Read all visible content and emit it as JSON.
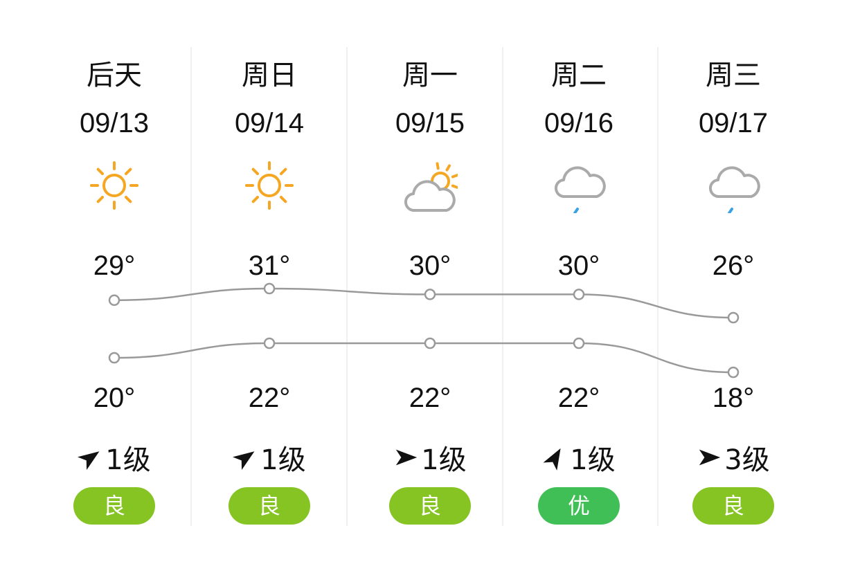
{
  "days": [
    {
      "day": "后天",
      "date": "09/13",
      "weather": "sunny-icon",
      "high": 29,
      "high_label": "29°",
      "low": 20,
      "low_label": "20°",
      "wind_dir": -35,
      "wind": "1级",
      "aqi": "良",
      "aqi_color": "#86c423"
    },
    {
      "day": "周日",
      "date": "09/14",
      "weather": "sunny-icon",
      "high": 31,
      "high_label": "31°",
      "low": 22,
      "low_label": "22°",
      "wind_dir": -35,
      "wind": "1级",
      "aqi": "良",
      "aqi_color": "#86c423"
    },
    {
      "day": "周一",
      "date": "09/15",
      "weather": "partly-cloudy-icon",
      "high": 30,
      "high_label": "30°",
      "low": 22,
      "low_label": "22°",
      "wind_dir": 0,
      "wind": "1级",
      "aqi": "良",
      "aqi_color": "#86c423"
    },
    {
      "day": "周二",
      "date": "09/16",
      "weather": "light-rain-icon",
      "high": 30,
      "high_label": "30°",
      "low": 22,
      "low_label": "22°",
      "wind_dir": -60,
      "wind": "1级",
      "aqi": "优",
      "aqi_color": "#3fbf55"
    },
    {
      "day": "周三",
      "date": "09/17",
      "weather": "light-rain-icon",
      "high": 26,
      "high_label": "26°",
      "low": 18,
      "low_label": "18°",
      "wind_dir": 0,
      "wind": "3级",
      "aqi": "良",
      "aqi_color": "#86c423"
    }
  ],
  "colors": {
    "sun": "#f5a623",
    "cloud": "#aaaaaa",
    "rain": "#3aa0e8",
    "line": "#999999"
  }
}
